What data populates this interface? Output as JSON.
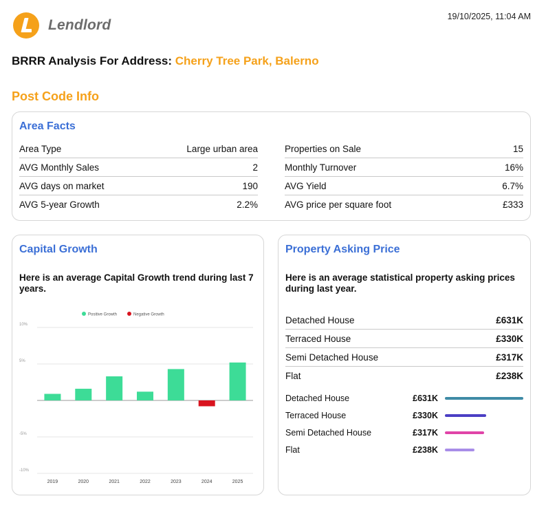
{
  "header": {
    "brand": "Lendlord",
    "timestamp": "19/10/2025, 11:04 AM"
  },
  "title": {
    "prefix": "BRRR Analysis For Address:",
    "address": "Cherry Tree Park, Balerno"
  },
  "section_title": "Post Code Info",
  "area_facts": {
    "title": "Area Facts",
    "left": [
      {
        "label": "Area Type",
        "value": "Large urban area"
      },
      {
        "label": "AVG Monthly Sales",
        "value": "2"
      },
      {
        "label": "AVG days on market",
        "value": "190"
      },
      {
        "label": "AVG 5-year Growth",
        "value": "2.2%"
      }
    ],
    "right": [
      {
        "label": "Properties on Sale",
        "value": "15"
      },
      {
        "label": "Monthly Turnover",
        "value": "16%"
      },
      {
        "label": "AVG Yield",
        "value": "6.7%"
      },
      {
        "label": "AVG price per square foot",
        "value": "£333"
      }
    ]
  },
  "capital_growth": {
    "title": "Capital Growth",
    "description": "Here is an average Capital Growth trend during last 7 years."
  },
  "chart_data": {
    "type": "bar",
    "categories": [
      "2019",
      "2020",
      "2021",
      "2022",
      "2023",
      "2024",
      "2025"
    ],
    "values": [
      0.9,
      1.6,
      3.3,
      1.2,
      4.3,
      -0.8,
      5.2
    ],
    "series_legend": [
      {
        "name": "Positive Growth",
        "color": "#3ddc97"
      },
      {
        "name": "Negative Growth",
        "color": "#d9141f"
      }
    ],
    "ytick_labels": [
      "10%",
      "5%",
      "",
      "-5%",
      "-10%"
    ],
    "yticks": [
      10,
      5,
      0,
      -5,
      -10
    ],
    "ylim": [
      -10,
      10
    ],
    "grid": true,
    "legend_position": "top"
  },
  "asking_price": {
    "title": "Property Asking Price",
    "description": "Here is an average statistical property asking prices during last year.",
    "rows": [
      {
        "label": "Detached House",
        "value": "£631K"
      },
      {
        "label": "Terraced House",
        "value": "£330K"
      },
      {
        "label": "Semi Detached House",
        "value": "£317K"
      },
      {
        "label": "Flat",
        "value": "£238K"
      }
    ],
    "bars": [
      {
        "label": "Detached House",
        "value": "£631K",
        "amount": 631,
        "color": "#3f8ba6"
      },
      {
        "label": "Terraced House",
        "value": "£330K",
        "amount": 330,
        "color": "#4b3fc4"
      },
      {
        "label": "Semi Detached House",
        "value": "£317K",
        "amount": 317,
        "color": "#e044a8"
      },
      {
        "label": "Flat",
        "value": "£238K",
        "amount": 238,
        "color": "#a88de8"
      }
    ]
  }
}
